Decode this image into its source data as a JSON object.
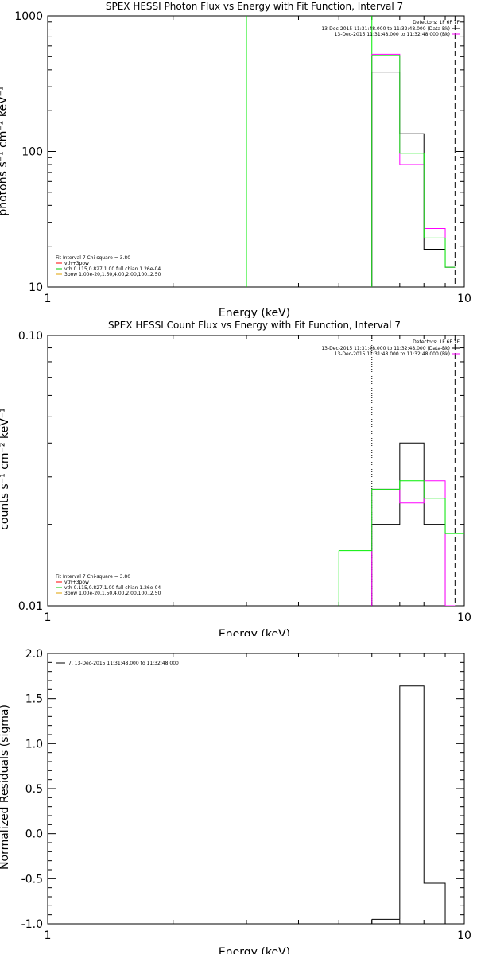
{
  "chart_data": [
    {
      "type": "line",
      "title": "SPEX HESSI Photon Flux vs Energy with Fit Function, Interval 7",
      "xlabel": "Energy (keV)",
      "ylabel": "photons s⁻¹ cm⁻² keV⁻¹",
      "xscale": "log",
      "yscale": "log",
      "xlim": [
        1,
        10
      ],
      "ylim": [
        10,
        1000
      ],
      "xticks": [
        {
          "v": 1,
          "label": "1"
        },
        {
          "v": 10,
          "label": "10"
        }
      ],
      "yticks": [
        {
          "v": 10,
          "label": "10"
        },
        {
          "v": 100,
          "label": "100"
        },
        {
          "v": 1000,
          "label": "1000"
        }
      ],
      "detectors_text": "Detectors: 1F 6F 7F",
      "legend_top_right": [
        {
          "text": "13-Dec-2015 11:31:48.000 to 11:32:48.000 (Data-Bk)",
          "color": "#000000"
        },
        {
          "text": "13-Dec-2015 11:31:48.000 to 11:32:48.000 (Bk)",
          "color": "#ff00ff"
        }
      ],
      "legend_bottom_left": [
        {
          "text": "Fit Interval  7    Chi-square = 3.80",
          "color": null
        },
        {
          "text": "vth+3pow",
          "color": "#ff0000"
        },
        {
          "text": "vth 0.115,0.827,1.00  full chian 1.26e-04",
          "color": "#00cc00"
        },
        {
          "text": "3pow 1.00e-20,1.50,4.00,2.00,100.,2.50",
          "color": "#e0a000"
        }
      ],
      "vlines": [
        {
          "x": 3.0,
          "color": "#00ee00",
          "style": "solid"
        },
        {
          "x": 6.0,
          "color": "#00ee00",
          "style": "solid"
        },
        {
          "x": 9.5,
          "color": "#000000",
          "style": "dashed"
        }
      ],
      "series": [
        {
          "color": "#000000",
          "edges": [
            6,
            7,
            8,
            9,
            9.5
          ],
          "values": [
            385,
            135,
            19,
            14
          ]
        },
        {
          "color": "#ff00ff",
          "edges": [
            6,
            7,
            8,
            9,
            9.5
          ],
          "values": [
            520,
            80,
            27,
            14
          ]
        },
        {
          "color": "#00ee00",
          "edges": [
            6,
            7,
            8,
            9,
            9.5
          ],
          "values": [
            510,
            97,
            23,
            14
          ]
        }
      ]
    },
    {
      "type": "line",
      "title": "SPEX HESSI Count Flux vs Energy with Fit Function, Interval 7",
      "xlabel": "Energy (keV)",
      "ylabel": "counts s⁻¹ cm⁻² keV⁻¹",
      "xscale": "log",
      "yscale": "log",
      "xlim": [
        1,
        10
      ],
      "ylim": [
        0.01,
        0.1
      ],
      "xticks": [
        {
          "v": 1,
          "label": "1"
        },
        {
          "v": 10,
          "label": "10"
        }
      ],
      "yticks": [
        {
          "v": 0.01,
          "label": "0.01"
        },
        {
          "v": 0.1,
          "label": "0.10"
        }
      ],
      "detectors_text": "Detectors: 1F 6F 7F",
      "legend_top_right": [
        {
          "text": "13-Dec-2015 11:31:48.000 to 11:32:48.000 (Data-Bk)",
          "color": "#000000"
        },
        {
          "text": "13-Dec-2015 11:31:48.000 to 11:32:48.000 (Bk)",
          "color": "#ff00ff"
        }
      ],
      "legend_bottom_left": [
        {
          "text": "Fit Interval  7    Chi-square = 3.80",
          "color": null
        },
        {
          "text": "vth+3pow",
          "color": "#ff0000"
        },
        {
          "text": "vth 0.115,0.827,1.00  full chian 1.26e-04",
          "color": "#00cc00"
        },
        {
          "text": "3pow 1.00e-20,1.50,4.00,2.00,100.,2.50",
          "color": "#e0a000"
        }
      ],
      "vlines": [
        {
          "x": 6.0,
          "color": "#000000",
          "style": "dotted"
        },
        {
          "x": 9.5,
          "color": "#000000",
          "style": "dashed"
        }
      ],
      "series": [
        {
          "color": "#000000",
          "edges": [
            6,
            7,
            8,
            9,
            9.5
          ],
          "values": [
            0.02,
            0.04,
            0.02,
            0.01
          ]
        },
        {
          "color": "#ff00ff",
          "edges": [
            6,
            7,
            8,
            9,
            9.5
          ],
          "values": [
            0.027,
            0.024,
            0.029,
            0.01
          ]
        },
        {
          "color": "#00ee00",
          "edges": [
            5,
            6,
            7,
            8,
            9,
            10
          ],
          "values": [
            0.016,
            0.027,
            0.029,
            0.025,
            0.0185
          ]
        }
      ]
    },
    {
      "type": "line",
      "title": "",
      "xlabel": "Energy (keV)",
      "ylabel": "Normalized Residuals (sigma)",
      "xscale": "log",
      "yscale": "linear",
      "xlim": [
        1,
        10
      ],
      "ylim": [
        -1.0,
        2.0
      ],
      "xticks": [
        {
          "v": 1,
          "label": "1"
        },
        {
          "v": 10,
          "label": "10"
        }
      ],
      "yticks": [
        {
          "v": -1.0,
          "label": "-1.0"
        },
        {
          "v": -0.5,
          "label": "-0.5"
        },
        {
          "v": 0.0,
          "label": "0.0"
        },
        {
          "v": 0.5,
          "label": "0.5"
        },
        {
          "v": 1.0,
          "label": "1.0"
        },
        {
          "v": 1.5,
          "label": "1.5"
        },
        {
          "v": 2.0,
          "label": "2.0"
        }
      ],
      "legend_top_left": [
        {
          "text": "7. 13-Dec-2015 11:31:48.000 to 11:32:48.000",
          "color": "#000000"
        }
      ],
      "vlines": [],
      "series": [
        {
          "color": "#000000",
          "edges": [
            6,
            7,
            8,
            9,
            9.5
          ],
          "values": [
            -0.95,
            1.64,
            -0.55,
            -1.0
          ]
        }
      ]
    }
  ]
}
